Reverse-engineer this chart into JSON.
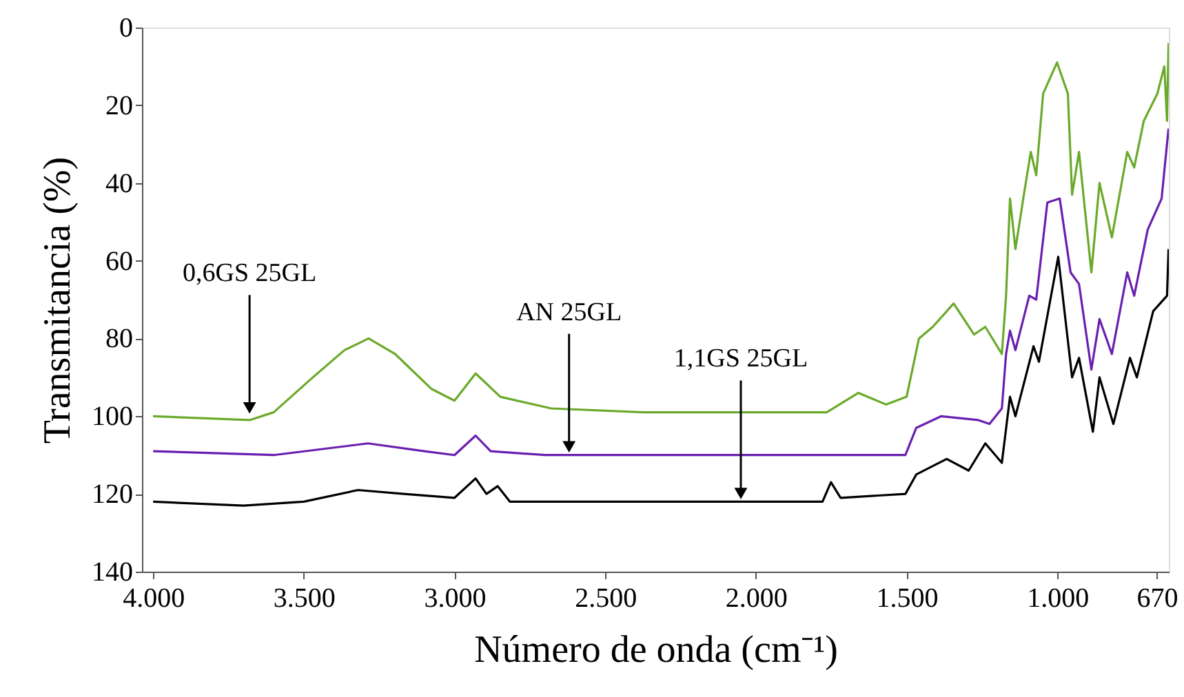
{
  "chart_data": {
    "type": "line",
    "xlabel": "Número de onda (cm⁻¹)",
    "ylabel": "Transmitancia (%)",
    "xlim": [
      4037,
      630
    ],
    "ylim": [
      140,
      0
    ],
    "xticks": [
      {
        "value": 4000,
        "label": "4.000"
      },
      {
        "value": 3500,
        "label": "3.500"
      },
      {
        "value": 3000,
        "label": "3.000"
      },
      {
        "value": 2500,
        "label": "2.500"
      },
      {
        "value": 2000,
        "label": "2.000"
      },
      {
        "value": 1500,
        "label": "1.500"
      },
      {
        "value": 1000,
        "label": "1.000"
      },
      670
    ],
    "yticks": [
      0,
      20,
      40,
      60,
      80,
      100,
      120,
      140
    ],
    "grid": false,
    "marker": "none",
    "line_style": "solid",
    "series": [
      {
        "color": "#6aaa2a",
        "x": [
          4000,
          3680,
          3600,
          3470,
          3365,
          3285,
          3197,
          3076,
          3000,
          2930,
          2848,
          2679,
          2374,
          1765,
          1660,
          1568,
          1500,
          1459,
          1413,
          1344,
          1276,
          1239,
          1184,
          1170,
          1157,
          1139,
          1111,
          1088,
          1070,
          1047,
          1001,
          965,
          951,
          928,
          887,
          860,
          819,
          768,
          745,
          713,
          668,
          645,
          636,
          631
        ],
        "values": [
          100,
          101,
          99,
          90,
          83,
          80,
          84,
          93,
          96,
          89,
          95,
          98,
          99,
          99,
          94,
          97,
          95,
          80,
          77,
          71,
          79,
          77,
          84,
          69,
          44,
          57,
          43,
          32,
          38,
          17,
          9,
          17,
          43,
          32,
          63,
          40,
          54,
          32,
          36,
          24,
          17,
          10,
          24,
          4
        ]
      },
      {
        "color": "#6a1fb0",
        "x": [
          4000,
          3600,
          3287,
          3100,
          3000,
          2930,
          2880,
          2700,
          1750,
          1504,
          1468,
          1385,
          1262,
          1225,
          1184,
          1170,
          1157,
          1139,
          1093,
          1070,
          1033,
          992,
          956,
          928,
          887,
          860,
          819,
          768,
          745,
          700,
          654,
          631
        ],
        "values": [
          109,
          110,
          107,
          109,
          110,
          105,
          109,
          110,
          110,
          110,
          103,
          100,
          101,
          102,
          98,
          84,
          78,
          83,
          69,
          70,
          45,
          44,
          63,
          66,
          88,
          75,
          84,
          63,
          69,
          52,
          44,
          26
        ]
      },
      {
        "color": "#000000",
        "x": [
          4000,
          3700,
          3500,
          3320,
          3168,
          3000,
          2930,
          2894,
          2857,
          2816,
          1779,
          1751,
          1719,
          1504,
          1468,
          1367,
          1294,
          1239,
          1184,
          1157,
          1139,
          1079,
          1061,
          997,
          951,
          928,
          882,
          860,
          814,
          759,
          736,
          682,
          636,
          631
        ],
        "values": [
          122,
          123,
          122,
          119,
          120,
          121,
          116,
          120,
          118,
          122,
          122,
          117,
          121,
          120,
          115,
          111,
          114,
          107,
          112,
          95,
          100,
          82,
          86,
          59,
          90,
          85,
          104,
          90,
          102,
          85,
          90,
          73,
          69,
          57
        ]
      }
    ],
    "annotations": [
      {
        "text": "0,6GS 25GL",
        "x": 3680,
        "y": 100
      },
      {
        "text": "AN 25GL",
        "x": 2620,
        "y": 110
      },
      {
        "text": "1,1GS 25GL",
        "x": 2050,
        "y": 122
      }
    ]
  }
}
